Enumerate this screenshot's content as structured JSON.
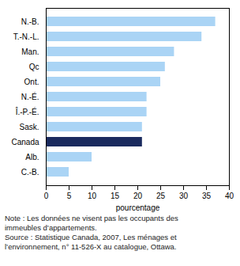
{
  "chart_data": {
    "type": "bar",
    "orientation": "horizontal",
    "categories": [
      "N.-B.",
      "T.-N.-L.",
      "Man.",
      "Qc",
      "Ont.",
      "N.-É.",
      "Î.-P.-É.",
      "Sask.",
      "Canada",
      "Alb.",
      "C.-B."
    ],
    "values": [
      37,
      34,
      28,
      26,
      25,
      22,
      22,
      21,
      21,
      10,
      5
    ],
    "colors": [
      "#aad4f5",
      "#aad4f5",
      "#aad4f5",
      "#aad4f5",
      "#aad4f5",
      "#aad4f5",
      "#aad4f5",
      "#aad4f5",
      "#1a2a5e",
      "#aad4f5",
      "#aad4f5"
    ],
    "xlabel": "pourcentage",
    "xlim": [
      0,
      40
    ],
    "xticks": [
      0,
      5,
      10,
      15,
      20,
      25,
      30,
      35,
      40
    ],
    "grid": false,
    "annotations": [
      "Note : Les données ne visent pas les occupants des",
      "immeubles d’appartements.",
      "Source : Statistique Canada, 2007, Les ménages et",
      "l’environnement, n° 11-526-X au catalogue, Ottawa."
    ]
  }
}
